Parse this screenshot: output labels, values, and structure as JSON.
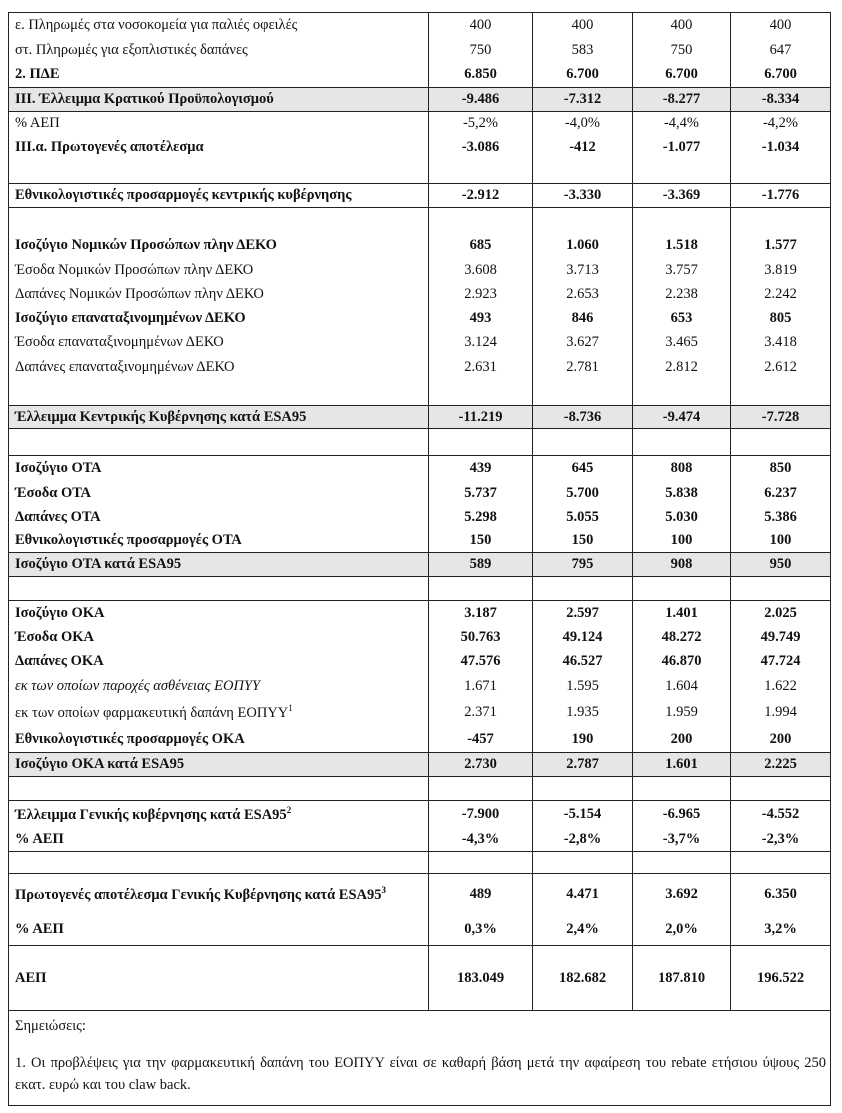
{
  "table": {
    "rows": [
      {
        "label": "ε. Πληρωμές στα νοσοκομεία για παλιές οφειλές",
        "values": [
          "400",
          "400",
          "400",
          "400"
        ]
      },
      {
        "label": "στ. Πληρωμές για εξοπλιστικές δαπάνες",
        "values": [
          "750",
          "583",
          "750",
          "647"
        ]
      },
      {
        "label": "2. ΠΔΕ",
        "values": [
          "6.850",
          "6.700",
          "6.700",
          "6.700"
        ]
      },
      {
        "label": "III. Έλλειμμα Κρατικού Προϋπολογισμού",
        "values": [
          "-9.486",
          "-7.312",
          "-8.277",
          "-8.334"
        ]
      },
      {
        "label": "% ΑΕΠ",
        "values": [
          "-5,2%",
          "-4,0%",
          "-4,4%",
          "-4,2%"
        ]
      },
      {
        "label": "III.α. Πρωτογενές αποτέλεσμα",
        "values": [
          "-3.086",
          "-412",
          "-1.077",
          "-1.034"
        ]
      },
      {
        "label": "Εθνικολογιστικές προσαρμογές κεντρικής κυβέρνησης",
        "values": [
          "-2.912",
          "-3.330",
          "-3.369",
          "-1.776"
        ]
      },
      {
        "label": "Ισοζύγιο Νομικών Προσώπων πλην ΔΕΚΟ",
        "values": [
          "685",
          "1.060",
          "1.518",
          "1.577"
        ]
      },
      {
        "label": "Έσοδα Νομικών Προσώπων πλην ΔΕΚΟ",
        "values": [
          "3.608",
          "3.713",
          "3.757",
          "3.819"
        ]
      },
      {
        "label": "Δαπάνες Νομικών Προσώπων πλην ΔΕΚΟ",
        "values": [
          "2.923",
          "2.653",
          "2.238",
          "2.242"
        ]
      },
      {
        "label": "Ισοζύγιο επαναταξινομημένων ΔΕΚΟ",
        "values": [
          "493",
          "846",
          "653",
          "805"
        ]
      },
      {
        "label": "Έσοδα επαναταξινομημένων ΔΕΚΟ",
        "values": [
          "3.124",
          "3.627",
          "3.465",
          "3.418"
        ]
      },
      {
        "label": "Δαπάνες επαναταξινομημένων ΔΕΚΟ",
        "values": [
          "2.631",
          "2.781",
          "2.812",
          "2.612"
        ]
      },
      {
        "label": "Έλλειμμα Κεντρικής Κυβέρνησης κατά ESA95",
        "values": [
          "-11.219",
          "-8.736",
          "-9.474",
          "-7.728"
        ]
      },
      {
        "label": "Ισοζύγιο ΟΤΑ",
        "values": [
          "439",
          "645",
          "808",
          "850"
        ]
      },
      {
        "label": "Έσοδα ΟΤΑ",
        "values": [
          "5.737",
          "5.700",
          "5.838",
          "6.237"
        ]
      },
      {
        "label": "Δαπάνες ΟΤΑ",
        "values": [
          "5.298",
          "5.055",
          "5.030",
          "5.386"
        ]
      },
      {
        "label": "Εθνικολογιστικές προσαρμογές ΟΤΑ",
        "values": [
          "150",
          "150",
          "100",
          "100"
        ]
      },
      {
        "label": "Ισοζύγιο ΟΤΑ κατά ESA95",
        "values": [
          "589",
          "795",
          "908",
          "950"
        ]
      },
      {
        "label": "Ισοζύγιο ΟΚΑ",
        "values": [
          "3.187",
          "2.597",
          "1.401",
          "2.025"
        ]
      },
      {
        "label": "Έσοδα ΟΚΑ",
        "values": [
          "50.763",
          "49.124",
          "48.272",
          "49.749"
        ]
      },
      {
        "label": "Δαπάνες ΟΚΑ",
        "values": [
          "47.576",
          "46.527",
          "46.870",
          "47.724"
        ]
      },
      {
        "label": "εκ των οποίων παροχές ασθένειας ΕΟΠΥΥ",
        "values": [
          "1.671",
          "1.595",
          "1.604",
          "1.622"
        ]
      },
      {
        "label": "εκ των οποίων φαρμακευτική δαπάνη ΕΟΠΥΥ",
        "sup": "1",
        "values": [
          "2.371",
          "1.935",
          "1.959",
          "1.994"
        ]
      },
      {
        "label": "Εθνικολογιστικές προσαρμογές ΟΚΑ",
        "values": [
          "-457",
          "190",
          "200",
          "200"
        ]
      },
      {
        "label": "Ισοζύγιο ΟΚΑ κατά ESA95",
        "values": [
          "2.730",
          "2.787",
          "1.601",
          "2.225"
        ]
      },
      {
        "label": "Έλλειμμα Γενικής κυβέρνησης κατά ESA95",
        "sup": "2",
        "values": [
          "-7.900",
          "-5.154",
          "-6.965",
          "-4.552"
        ]
      },
      {
        "label": "% ΑΕΠ",
        "values": [
          "-4,3%",
          "-2,8%",
          "-3,7%",
          "-2,3%"
        ]
      },
      {
        "label": "Πρωτογενές αποτέλεσμα Γενικής Κυβέρνησης κατά ESA95",
        "sup": "3",
        "values": [
          "489",
          "4.471",
          "3.692",
          "6.350"
        ]
      },
      {
        "label": "% ΑΕΠ",
        "values": [
          "0,3%",
          "2,4%",
          "2,0%",
          "3,2%"
        ]
      },
      {
        "label": "ΑΕΠ",
        "values": [
          "183.049",
          "182.682",
          "187.810",
          "196.522"
        ]
      }
    ]
  },
  "notes": {
    "heading": "Σημειώσεις:",
    "items": [
      "1. Οι προβλέψεις για την φαρμακευτική δαπάνη του ΕΟΠΥΥ είναι σε καθαρή βάση μετά την αφαίρεση του rebate ετήσιου ύψους 250 εκατ. ευρώ και του claw back."
    ]
  }
}
